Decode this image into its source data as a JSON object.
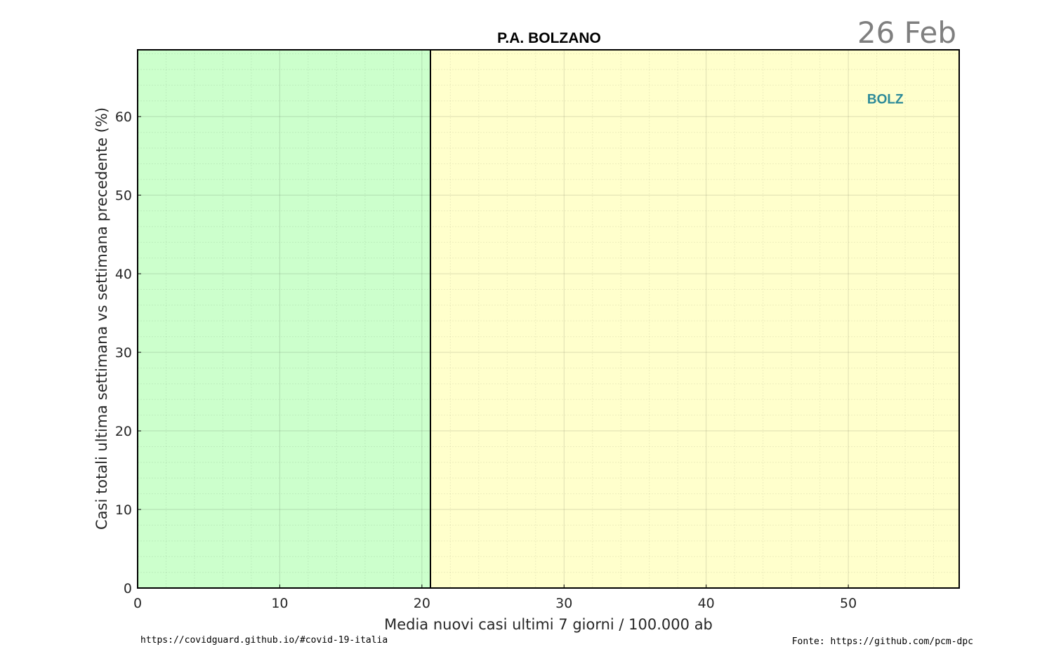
{
  "chart_data": {
    "type": "scatter",
    "title": "P.A. BOLZANO",
    "date_label": "26 Feb",
    "xlabel": "Media nuovi casi ultimi 7 giorni / 100.000 ab",
    "ylabel": "Casi totali ultima settimana vs settimana precedente (%)",
    "xlim": [
      0,
      57.8
    ],
    "ylim": [
      0,
      68.5
    ],
    "x_ticks": [
      0,
      10,
      20,
      30,
      40,
      50
    ],
    "y_ticks": [
      0,
      10,
      20,
      30,
      40,
      50,
      60
    ],
    "x_tick_labels": [
      "0",
      "10",
      "20",
      "30",
      "40",
      "50"
    ],
    "y_tick_labels": [
      "0",
      "10",
      "20",
      "30",
      "40",
      "50",
      "60"
    ],
    "grid": true,
    "zones": [
      {
        "from": 0,
        "to": 20.6,
        "color": "#ccffcc"
      },
      {
        "from": 20.6,
        "to": 57.8,
        "color": "#ffffcc"
      }
    ],
    "threshold_x": 20.6,
    "points": [
      {
        "label": "BOLZ",
        "x": 52.6,
        "y": 62.3,
        "color": "#2e8b99"
      }
    ],
    "footer_left": "https://covidguard.github.io/#covid-19-italia",
    "footer_right": "Fonte: https://github.com/pcm-dpc"
  }
}
